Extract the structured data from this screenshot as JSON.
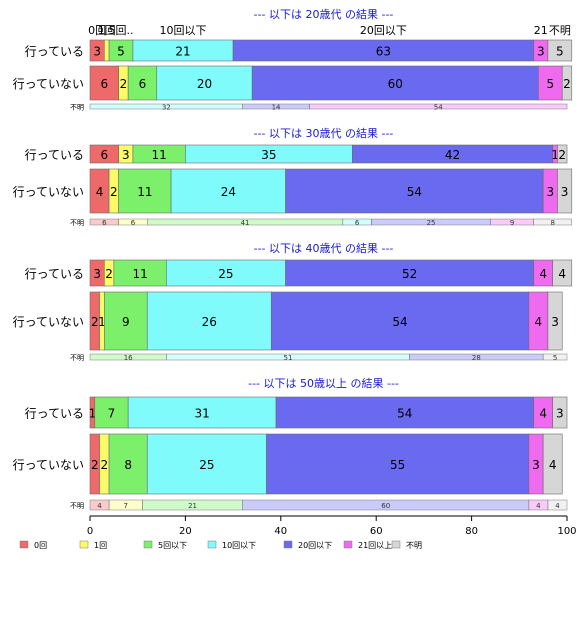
{
  "chart_data": {
    "type": "bar",
    "orientation": "horizontal",
    "stacked": true,
    "x_range": [
      0,
      100
    ],
    "x_ticks": [
      "0",
      "20",
      "40",
      "60",
      "80",
      "100"
    ],
    "legend_position": "bottom",
    "categories": [
      {
        "name": "0回",
        "color": "#ee6a6a"
      },
      {
        "name": "1回",
        "color": "#fbfb6a"
      },
      {
        "name": "5回以下",
        "color": "#7cf06a"
      },
      {
        "name": "10回以下",
        "color": "#7ffbfb"
      },
      {
        "name": "20回以下",
        "color": "#6a6af0"
      },
      {
        "name": "21回以上",
        "color": "#ee6aee"
      },
      {
        "name": "不明",
        "color": "#d6d6d6"
      }
    ],
    "panels": [
      {
        "title": "--- 以下は 20歳代 の結果 ---",
        "top_labels": [
          "0回",
          "1回",
          "5回..",
          "10回以下",
          "20回以下",
          "21",
          "不明"
        ],
        "rows": [
          {
            "label": "行っている",
            "values": [
              3,
              1,
              5,
              21,
              63,
              3,
              5
            ],
            "value_labels": [
              "3",
              "",
              "5",
              "21",
              "63",
              "3",
              "5"
            ]
          },
          {
            "label": "行っていない",
            "values": [
              6,
              2,
              6,
              20,
              60,
              5,
              2
            ],
            "value_labels": [
              "6",
              "2",
              "6",
              "20",
              "60",
              "5",
              "2"
            ]
          }
        ],
        "unknown": {
          "label": "不明",
          "values": [
            0,
            0,
            0,
            32,
            14,
            54,
            0
          ],
          "value_labels": [
            "",
            "",
            "",
            "32",
            "14",
            "54",
            ""
          ]
        }
      },
      {
        "title": "--- 以下は 30歳代 の結果 ---",
        "top_labels": [],
        "rows": [
          {
            "label": "行っている",
            "values": [
              6,
              3,
              11,
              35,
              42,
              1,
              2
            ],
            "value_labels": [
              "6",
              "3",
              "11",
              "35",
              "42",
              "1",
              "2"
            ]
          },
          {
            "label": "行っていない",
            "values": [
              4,
              2,
              11,
              24,
              54,
              3,
              3
            ],
            "value_labels": [
              "4",
              "2",
              "11",
              "24",
              "54",
              "3",
              "3"
            ]
          }
        ],
        "unknown": {
          "label": "不明",
          "values": [
            6,
            6,
            41,
            6,
            25,
            9,
            8
          ],
          "value_labels": [
            "6",
            "6",
            "41",
            "6",
            "25",
            "9",
            "8"
          ]
        }
      },
      {
        "title": "--- 以下は 40歳代 の結果 ---",
        "top_labels": [],
        "rows": [
          {
            "label": "行っている",
            "values": [
              3,
              2,
              11,
              25,
              52,
              4,
              4
            ],
            "value_labels": [
              "3",
              "2",
              "11",
              "25",
              "52",
              "4",
              "4"
            ]
          },
          {
            "label": "行っていない",
            "values": [
              2,
              1,
              9,
              26,
              54,
              4,
              3
            ],
            "value_labels": [
              "2",
              "1",
              "9",
              "26",
              "54",
              "4",
              "3"
            ]
          }
        ],
        "unknown": {
          "label": "不明",
          "values": [
            0,
            0,
            16,
            51,
            28,
            0,
            5
          ],
          "value_labels": [
            "",
            "",
            "16",
            "51",
            "28",
            "",
            "5"
          ]
        }
      },
      {
        "title": "--- 以下は 50歳以上 の結果 ---",
        "top_labels": [],
        "rows": [
          {
            "label": "行っている",
            "values": [
              1,
              0,
              7,
              31,
              54,
              4,
              3
            ],
            "value_labels": [
              "1",
              "",
              "7",
              "31",
              "54",
              "4",
              "3"
            ]
          },
          {
            "label": "行っていない",
            "values": [
              2,
              2,
              8,
              25,
              55,
              3,
              4
            ],
            "value_labels": [
              "2",
              "2",
              "8",
              "25",
              "55",
              "3",
              "4"
            ]
          }
        ],
        "unknown": {
          "label": "不明",
          "values": [
            4,
            7,
            21,
            0,
            60,
            4,
            4
          ],
          "value_labels": [
            "4",
            "7",
            "21",
            "",
            "60",
            "4",
            "4"
          ]
        }
      }
    ]
  }
}
